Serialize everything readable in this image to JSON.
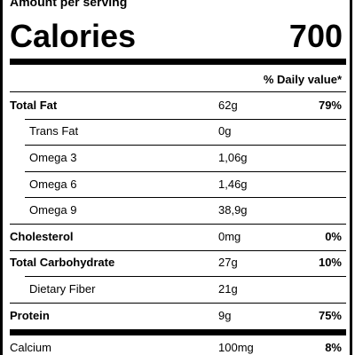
{
  "header": {
    "subtitle": "Amount per serving",
    "calories_label": "Calories",
    "calories_value": "700"
  },
  "daily_value_heading": "% Daily value*",
  "rows": [
    {
      "name": "Total Fat",
      "amount": "62g",
      "daily_value": "79%",
      "bold": true
    },
    {
      "name": "Trans Fat",
      "amount": "0g",
      "indent": true
    },
    {
      "name": "Omega 3",
      "amount": "1,06g",
      "indent": true
    },
    {
      "name": "Omega 6",
      "amount": "1,46g",
      "indent": true
    },
    {
      "name": "Omega 9",
      "amount": "38,9g",
      "indent": true
    },
    {
      "name": "Cholesterol",
      "amount": "0mg",
      "daily_value": "0%",
      "bold": true
    },
    {
      "name": "Total Carbohydrate",
      "amount": "27g",
      "daily_value": "10%",
      "bold": true
    },
    {
      "name": "Dietary Fiber",
      "amount": "21g",
      "indent": true
    },
    {
      "name": "Protein",
      "amount": "9g",
      "daily_value": "75%",
      "bold": true
    },
    {
      "name": "Calcium",
      "amount": "100mg",
      "daily_value": "8%",
      "thick_top": true
    }
  ]
}
